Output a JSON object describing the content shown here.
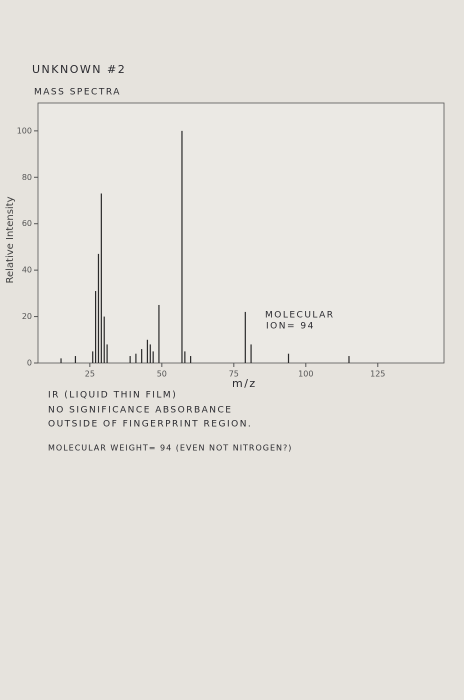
{
  "chart_data": {
    "type": "bar",
    "title": "UNKNOWN #2",
    "subtitle": "MASS SPECTRA",
    "y_label": "Relative Intensity",
    "x_label": "m/z",
    "annotations": [
      "MOLECULAR",
      "ION= 94",
      "IR (LIQUID THIN FILM)",
      "NO SIGNIFICANCE ABSORBANCE",
      "OUTSIDE OF FINGERPRINT REGION.",
      "MOLECULAR WEIGHT= 94 (EVEN NOT NITROGEN?)"
    ],
    "x": [
      15,
      20,
      26,
      27,
      28,
      29,
      30,
      31,
      39,
      41,
      43,
      45,
      46,
      47,
      49,
      57,
      58,
      60,
      79,
      81,
      94,
      115
    ],
    "values": [
      2,
      3,
      5,
      31,
      47,
      73,
      20,
      8,
      3,
      4,
      6,
      10,
      8,
      5,
      25,
      100,
      5,
      3,
      22,
      8,
      4,
      3
    ],
    "color": "#2a2a2a",
    "xlim": [
      7,
      148
    ],
    "ylim": [
      0,
      112
    ],
    "xticks": [
      25,
      50,
      75,
      100,
      125
    ],
    "yticks": [
      0,
      20,
      40,
      60,
      80,
      100
    ]
  }
}
